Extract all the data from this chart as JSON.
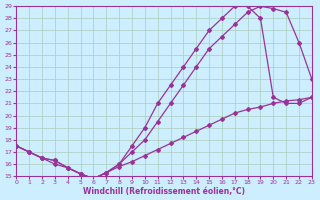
{
  "xlabel": "Windchill (Refroidissement éolien,°C)",
  "bg_color": "#cceeff",
  "line_color": "#993399",
  "grid_color": "#aaccbb",
  "xlim": [
    0,
    23
  ],
  "ylim": [
    15,
    29
  ],
  "xticks": [
    0,
    1,
    2,
    3,
    4,
    5,
    6,
    7,
    8,
    9,
    10,
    11,
    12,
    13,
    14,
    15,
    16,
    17,
    18,
    19,
    20,
    21,
    22,
    23
  ],
  "yticks": [
    15,
    16,
    17,
    18,
    19,
    20,
    21,
    22,
    23,
    24,
    25,
    26,
    27,
    28,
    29
  ],
  "line1_x": [
    0,
    1,
    2,
    3,
    4,
    5,
    6,
    7,
    8,
    9,
    10,
    11,
    12,
    13,
    14,
    15,
    16,
    17,
    18,
    19,
    20,
    21,
    22,
    23
  ],
  "line1_y": [
    17.5,
    17.0,
    16.5,
    16.3,
    15.7,
    15.2,
    14.8,
    15.3,
    16.0,
    17.0,
    18.0,
    19.5,
    21.0,
    22.5,
    24.0,
    25.5,
    26.5,
    27.5,
    28.5,
    29.0,
    28.8,
    28.5,
    26.0,
    23.0
  ],
  "line2_x": [
    0,
    1,
    2,
    3,
    4,
    5,
    6,
    7,
    8,
    9,
    10,
    11,
    12,
    13,
    14,
    15,
    16,
    17,
    18,
    19,
    20,
    21,
    22,
    23
  ],
  "line2_y": [
    17.5,
    17.0,
    16.5,
    16.3,
    15.7,
    15.2,
    14.8,
    15.3,
    16.0,
    17.5,
    19.0,
    21.0,
    22.5,
    24.0,
    25.5,
    27.0,
    28.0,
    29.0,
    29.0,
    28.0,
    21.5,
    21.0,
    21.0,
    21.5
  ],
  "line3_x": [
    0,
    1,
    2,
    3,
    4,
    5,
    6,
    7,
    8,
    9,
    10,
    11,
    12,
    13,
    14,
    15,
    16,
    17,
    18,
    19,
    20,
    21,
    22,
    23
  ],
  "line3_y": [
    17.5,
    17.0,
    16.5,
    16.0,
    15.7,
    15.2,
    14.8,
    15.3,
    15.8,
    16.2,
    16.7,
    17.2,
    17.7,
    18.2,
    18.7,
    19.2,
    19.7,
    20.2,
    20.5,
    20.7,
    21.0,
    21.2,
    21.3,
    21.5
  ]
}
